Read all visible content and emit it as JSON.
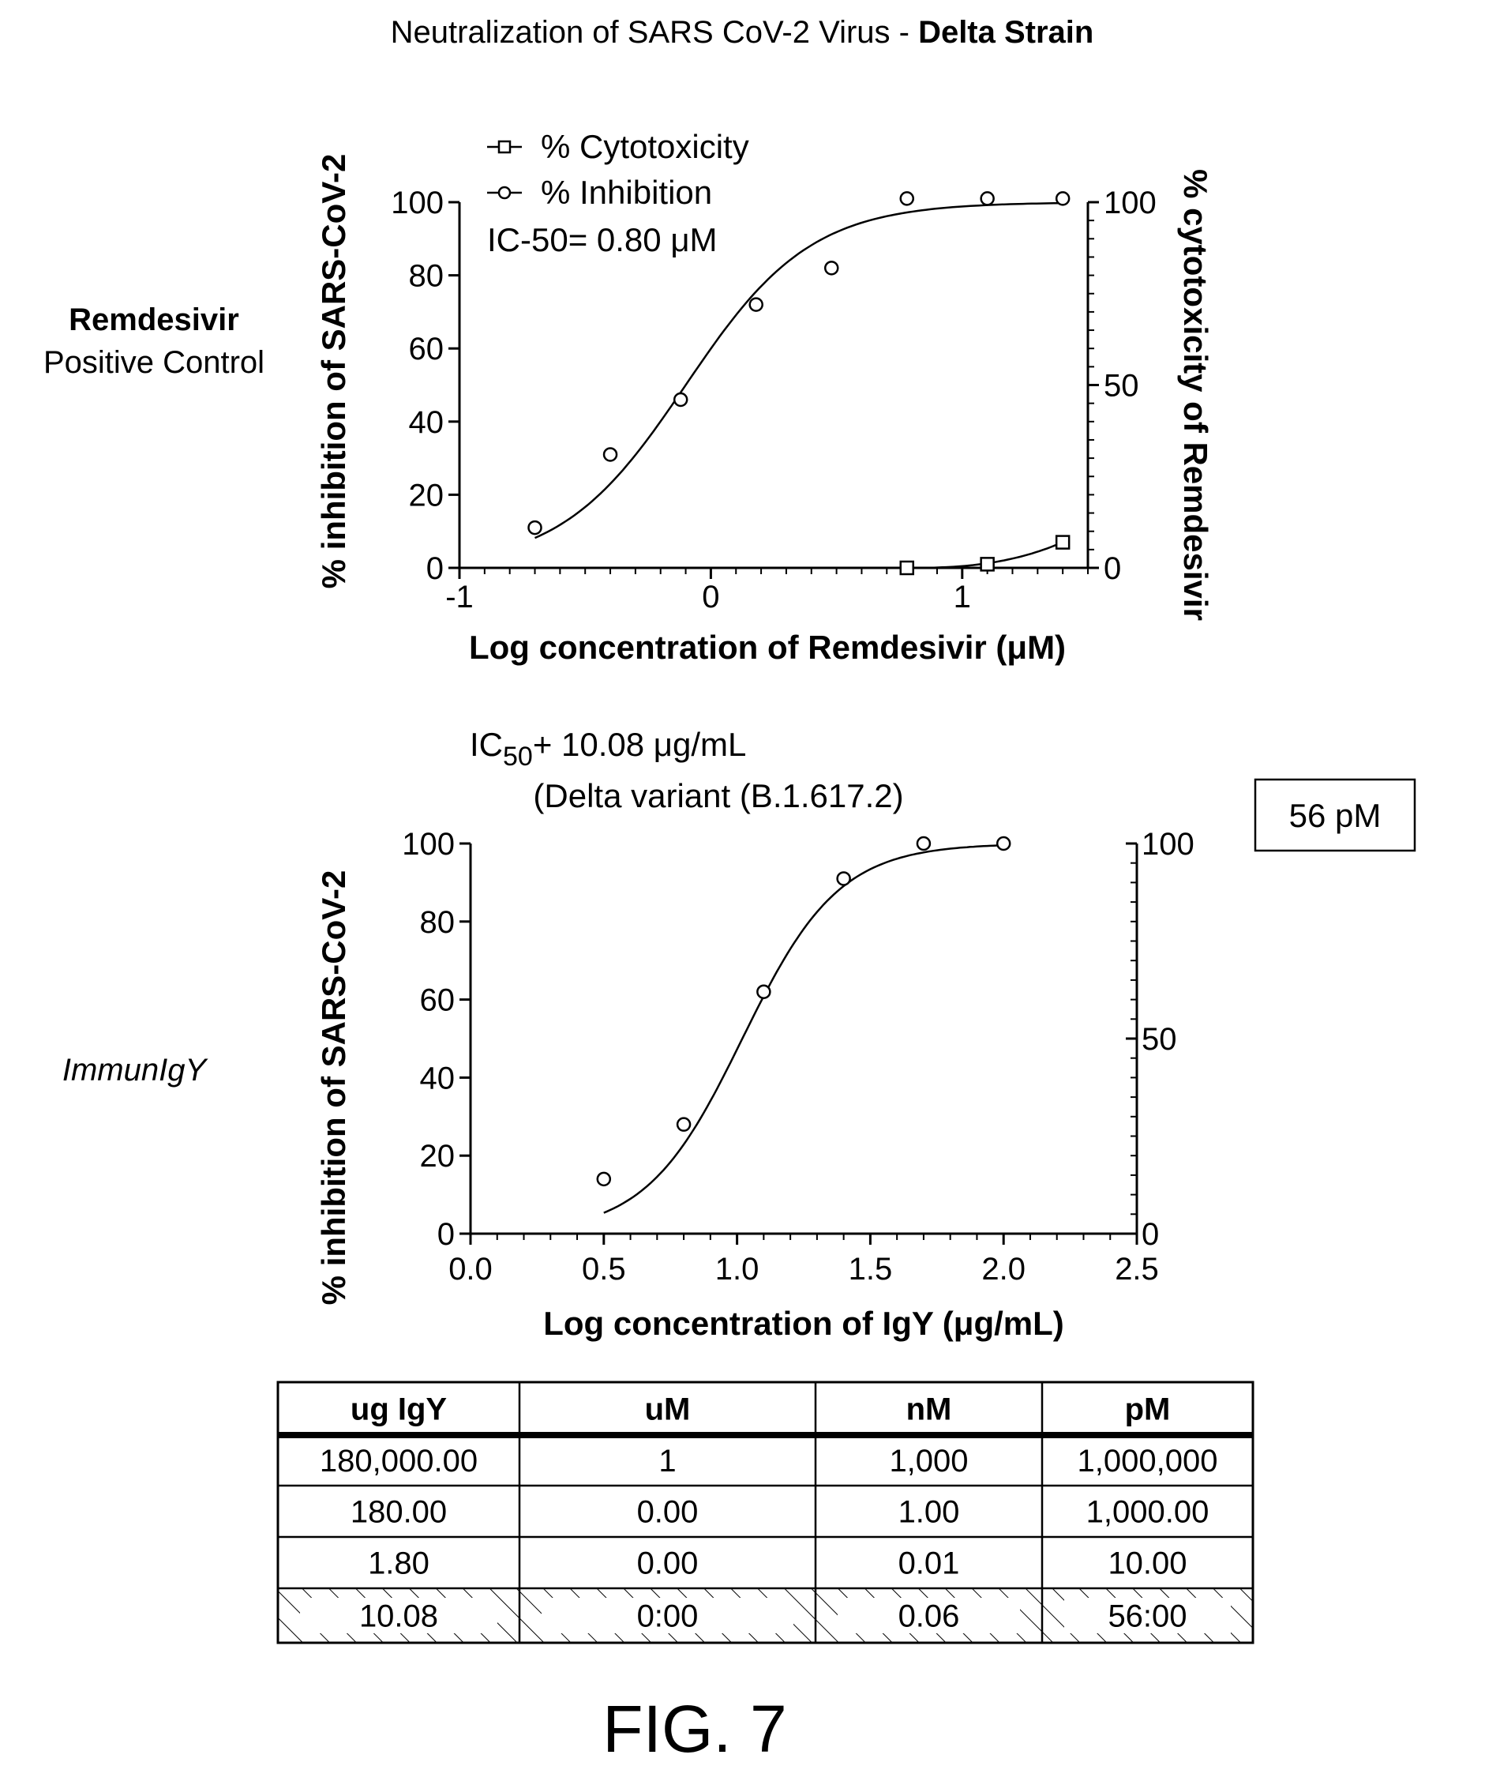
{
  "title": {
    "prefix": "Neutralization of SARS CoV-2 Virus - ",
    "bold": "Delta Strain"
  },
  "panel1_label": {
    "line1": "Remdesivir",
    "line2": "Positive Control"
  },
  "panel2_label": "ImmunIgY",
  "box_label": "56 pM",
  "figure_label": "FIG. 7",
  "chart_data": [
    {
      "type": "line",
      "xlabel": "Log concentration of Remdesivir (μM)",
      "ylabel": "% inhibition of SARS-CoV-2",
      "y2label": "% cytotoxicity of Remdesivir",
      "xlim": [
        -1,
        1.5
      ],
      "ylim": [
        0,
        100
      ],
      "y2lim": [
        0,
        100
      ],
      "x_ticks": [
        "-1",
        "0",
        "1"
      ],
      "y_ticks": [
        "0",
        "20",
        "40",
        "60",
        "80",
        "100"
      ],
      "y2_ticks": [
        "0",
        "50",
        "100"
      ],
      "legend": {
        "position": "top-left",
        "entries": [
          "% Cytotoxicity",
          "% Inhibition"
        ]
      },
      "annotation": "IC-50= 0.80 μM",
      "series": [
        {
          "name": "% Inhibition",
          "marker": "circle",
          "x": [
            -0.7,
            -0.4,
            -0.12,
            0.18,
            0.48,
            0.78,
            1.1,
            1.4
          ],
          "y": [
            11,
            31,
            46,
            72,
            82,
            101,
            101,
            101
          ],
          "curve_ic50_log": -0.1,
          "curve_hill": 1.75
        },
        {
          "name": "% Cytotoxicity",
          "axis": "right",
          "marker": "square",
          "x": [
            0.78,
            1.1,
            1.4
          ],
          "y": [
            0,
            1,
            7
          ]
        }
      ]
    },
    {
      "type": "line",
      "title": "(Delta variant (B.1.617.2)",
      "annotation": {
        "main": "IC",
        "sub": "50",
        "rest": "+ 10.08 μg/mL"
      },
      "xlabel": "Log concentration of IgY (μg/mL)",
      "ylabel": "% inhibition of SARS-CoV-2",
      "xlim": [
        0,
        2.5
      ],
      "ylim": [
        0,
        100
      ],
      "y2lim": [
        0,
        100
      ],
      "x_ticks": [
        "0.0",
        "0.5",
        "1.0",
        "1.5",
        "2.0",
        "2.5"
      ],
      "y_ticks": [
        "0",
        "20",
        "40",
        "60",
        "80",
        "100"
      ],
      "y2_ticks": [
        "0",
        "50",
        "100"
      ],
      "series": [
        {
          "name": "% Inhibition",
          "marker": "circle",
          "x": [
            0.5,
            0.8,
            1.1,
            1.4,
            1.7,
            2.0
          ],
          "y": [
            14,
            28,
            62,
            91,
            100,
            100
          ],
          "curve_ic50_log": 1.02,
          "curve_hill": 2.4,
          "curve_xrange": [
            0.5,
            2.0
          ]
        }
      ]
    }
  ],
  "table": {
    "headers": [
      "ug IgY",
      "uM",
      "nM",
      "pM"
    ],
    "rows": [
      [
        "180,000.00",
        "1",
        "1,000",
        "1,000,000"
      ],
      [
        "180.00",
        "0.00",
        "1.00",
        "1,000.00"
      ],
      [
        "1.80",
        "0.00",
        "0.01",
        "10.00"
      ],
      [
        "10.08",
        "0:00",
        "0.06",
        "56:00"
      ]
    ]
  }
}
